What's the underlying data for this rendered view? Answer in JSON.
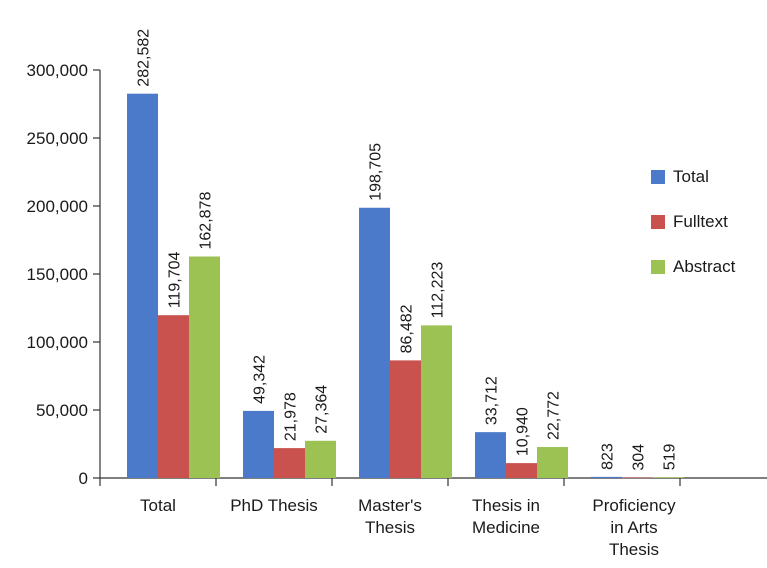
{
  "chart_data": {
    "type": "bar",
    "categories": [
      [
        "Total"
      ],
      [
        "PhD Thesis"
      ],
      [
        "Master's",
        "Thesis"
      ],
      [
        "Thesis in",
        "Medicine"
      ],
      [
        "Proficiency",
        "in Arts",
        "Thesis"
      ]
    ],
    "series": [
      {
        "name": "Total",
        "color": "#4a7ac9",
        "values": [
          282582,
          49342,
          198705,
          33712,
          823
        ],
        "labels": [
          "282,582",
          "49,342",
          "198,705",
          "33,712",
          "823"
        ]
      },
      {
        "name": "Fulltext",
        "color": "#c9514e",
        "values": [
          119704,
          21978,
          86482,
          10940,
          304
        ],
        "labels": [
          "119,704",
          "21,978",
          "86,482",
          "10,940",
          "304"
        ]
      },
      {
        "name": "Abstract",
        "color": "#9bc253",
        "values": [
          162878,
          27364,
          112223,
          22772,
          519
        ],
        "labels": [
          "162,878",
          "27,364",
          "112,223",
          "22,772",
          "519"
        ]
      }
    ],
    "yticks": [
      0,
      50000,
      100000,
      150000,
      200000,
      250000,
      300000
    ],
    "ytick_labels": [
      "0",
      "50,000",
      "100,000",
      "150,000",
      "200,000",
      "250,000",
      "300,000"
    ],
    "ylim": [
      0,
      300000
    ],
    "title": "",
    "xlabel": "",
    "ylabel": "",
    "grid": false,
    "legend_position": "right"
  }
}
